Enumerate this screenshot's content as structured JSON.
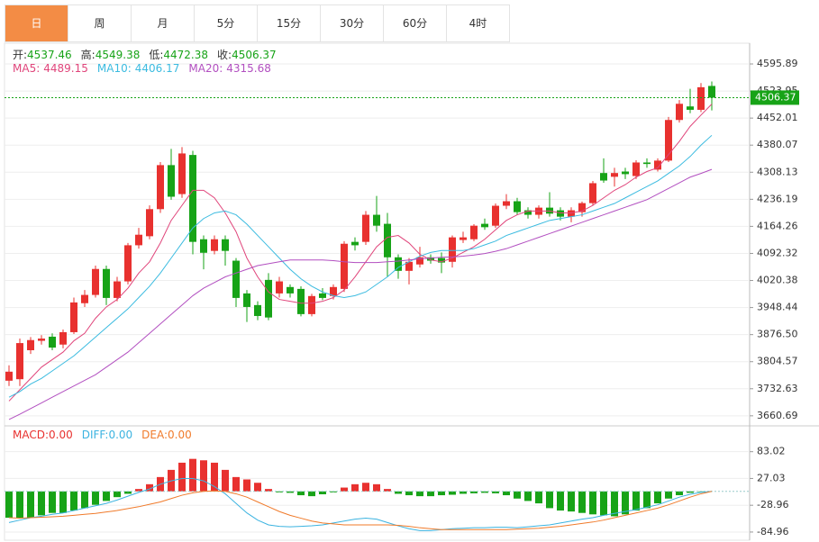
{
  "tabs": [
    "日",
    "周",
    "月",
    "5分",
    "15分",
    "30分",
    "60分",
    "4时"
  ],
  "active_tab": 0,
  "chart_data": [
    {
      "type": "candlestick",
      "ohlc_labels": [
        "开:",
        "高:",
        "低:",
        "收:"
      ],
      "up_color": "#e8312f",
      "down_color": "#17a317",
      "open": [
        3754,
        3758,
        3835,
        3860,
        3871,
        3850,
        3883,
        3960,
        3982,
        4051,
        3974,
        4018,
        4114,
        4138,
        4210,
        4327,
        4250,
        4354,
        4130,
        4099,
        4130,
        4073,
        3986,
        3955,
        4022,
        3986,
        4003,
        3998,
        3931,
        3986,
        3979,
        3998,
        4123,
        4123,
        4195,
        4171,
        4082,
        4046,
        4063,
        4082,
        4080,
        4070,
        4128,
        4130,
        4171,
        4166,
        4219,
        4231,
        4207,
        4195,
        4214,
        4207,
        4190,
        4202,
        4226,
        4306,
        4296,
        4310,
        4298,
        4334,
        4315,
        4339,
        4447,
        4483,
        4474,
        4537.46
      ],
      "high": [
        3795,
        3866,
        3870,
        3875,
        3880,
        3890,
        3975,
        3995,
        4060,
        4060,
        4030,
        4120,
        4160,
        4220,
        4335,
        4370,
        4375,
        4365,
        4140,
        4140,
        4140,
        4080,
        3995,
        3965,
        4040,
        4030,
        4010,
        4005,
        3985,
        4000,
        4010,
        4125,
        4135,
        4205,
        4245,
        4200,
        4090,
        4080,
        4110,
        4090,
        4095,
        4140,
        4150,
        4170,
        4185,
        4225,
        4250,
        4240,
        4215,
        4220,
        4255,
        4215,
        4215,
        4230,
        4285,
        4345,
        4320,
        4320,
        4340,
        4345,
        4345,
        4455,
        4500,
        4530,
        4545,
        4549.38
      ],
      "low": [
        3740,
        3740,
        3825,
        3850,
        3835,
        3840,
        3878,
        3950,
        3975,
        3955,
        3965,
        4010,
        4105,
        4130,
        4200,
        4235,
        4240,
        4090,
        4050,
        4090,
        4060,
        3950,
        3910,
        3915,
        3915,
        3975,
        3975,
        3925,
        3925,
        3968,
        3970,
        3990,
        4100,
        4115,
        4150,
        4030,
        4025,
        4010,
        4055,
        4065,
        4040,
        4055,
        4120,
        4125,
        4155,
        4160,
        4210,
        4195,
        4185,
        4185,
        4190,
        4180,
        4175,
        4190,
        4220,
        4280,
        4270,
        4290,
        4290,
        4320,
        4310,
        4335,
        4440,
        4465,
        4468,
        4472.38
      ],
      "close": [
        3778,
        3854,
        3862,
        3866,
        3842,
        3883,
        3962,
        3982,
        4051,
        3974,
        4018,
        4114,
        4142,
        4210,
        4327,
        4243,
        4358,
        4123,
        4094,
        4130,
        4099,
        3974,
        3950,
        3926,
        3922,
        4018,
        3986,
        3931,
        3979,
        3974,
        4003,
        4118,
        4114,
        4195,
        4166,
        4082,
        4046,
        4070,
        4082,
        4073,
        4068,
        4135,
        4135,
        4166,
        4162,
        4219,
        4231,
        4202,
        4195,
        4214,
        4198,
        4190,
        4207,
        4226,
        4279,
        4286,
        4306,
        4303,
        4334,
        4330,
        4339,
        4447,
        4490,
        4474,
        4534,
        4506.37
      ],
      "series": [
        {
          "name": "MA5:",
          "color": "#e0457b",
          "values": [
            3700,
            3730,
            3760,
            3790,
            3810,
            3830,
            3860,
            3880,
            3920,
            3950,
            3970,
            4000,
            4040,
            4070,
            4120,
            4180,
            4220,
            4260,
            4260,
            4240,
            4200,
            4150,
            4080,
            4030,
            3990,
            3970,
            3965,
            3960,
            3960,
            3965,
            3975,
            3995,
            4030,
            4070,
            4110,
            4135,
            4140,
            4120,
            4090,
            4075,
            4070,
            4080,
            4095,
            4110,
            4130,
            4155,
            4180,
            4195,
            4205,
            4205,
            4205,
            4200,
            4200,
            4205,
            4220,
            4240,
            4260,
            4275,
            4295,
            4310,
            4320,
            4355,
            4390,
            4430,
            4460,
            4489.15
          ]
        },
        {
          "name": "MA10:",
          "color": "#3bbbe0",
          "values": [
            3710,
            3725,
            3745,
            3760,
            3780,
            3800,
            3820,
            3845,
            3870,
            3895,
            3920,
            3945,
            3975,
            4005,
            4040,
            4080,
            4120,
            4160,
            4185,
            4200,
            4205,
            4195,
            4170,
            4140,
            4110,
            4080,
            4050,
            4025,
            4005,
            3990,
            3980,
            3975,
            3980,
            3990,
            4010,
            4030,
            4055,
            4070,
            4085,
            4095,
            4100,
            4100,
            4100,
            4105,
            4115,
            4125,
            4140,
            4150,
            4160,
            4170,
            4180,
            4185,
            4190,
            4195,
            4205,
            4215,
            4225,
            4240,
            4255,
            4270,
            4285,
            4305,
            4325,
            4350,
            4380,
            4406.17
          ]
        },
        {
          "name": "MA20:",
          "color": "#b24fc0",
          "values": [
            3651,
            3665,
            3680,
            3695,
            3710,
            3725,
            3740,
            3755,
            3770,
            3790,
            3810,
            3830,
            3855,
            3880,
            3905,
            3930,
            3955,
            3980,
            4000,
            4015,
            4030,
            4040,
            4050,
            4060,
            4065,
            4070,
            4075,
            4075,
            4075,
            4075,
            4073,
            4070,
            4068,
            4068,
            4068,
            4070,
            4072,
            4075,
            4078,
            4080,
            4082,
            4083,
            4085,
            4088,
            4092,
            4098,
            4105,
            4115,
            4125,
            4135,
            4145,
            4155,
            4165,
            4175,
            4185,
            4195,
            4205,
            4215,
            4225,
            4235,
            4250,
            4265,
            4280,
            4295,
            4305,
            4315.68
          ]
        }
      ],
      "ylim": [
        3634,
        4651
      ],
      "yticks": [
        4595.89,
        4523.95,
        4452.01,
        4380.07,
        4308.13,
        4236.19,
        4164.26,
        4092.32,
        4020.38,
        3948.44,
        {
          "value": 3876.5,
          "label": "3876.50"
        },
        3804.57,
        3732.63,
        3660.69
      ],
      "grid": true
    },
    {
      "type": "macd",
      "up_color": "#e8312f",
      "down_color": "#17a317",
      "series": [
        {
          "name": "MACD:",
          "legend_value": "0.00",
          "color": "#e8312f",
          "values": [
            -55,
            -55,
            -55,
            -50,
            -45,
            -45,
            -40,
            -35,
            -28,
            -20,
            -12,
            -5,
            5,
            15,
            30,
            45,
            60,
            68,
            65,
            60,
            45,
            30,
            25,
            18,
            5,
            -2,
            -3,
            -8,
            -10,
            -6,
            -2,
            8,
            15,
            18,
            15,
            5,
            -5,
            -8,
            -10,
            -10,
            -8,
            -7,
            -5,
            -4,
            -3,
            -4,
            -8,
            -15,
            -20,
            -25,
            -35,
            -40,
            -42,
            -45,
            -48,
            -50,
            -52,
            -48,
            -40,
            -35,
            -25,
            -15,
            -8,
            -3,
            -1,
            0
          ]
        },
        {
          "name": "DIFF:",
          "legend_value": "0.00",
          "color": "#3bb3e0",
          "values": [
            -65,
            -60,
            -55,
            -52,
            -48,
            -45,
            -40,
            -35,
            -30,
            -25,
            -18,
            -10,
            -2,
            5,
            15,
            22,
            27,
            27,
            22,
            10,
            -5,
            -25,
            -45,
            -60,
            -70,
            -73,
            -74,
            -73,
            -72,
            -70,
            -66,
            -62,
            -58,
            -56,
            -58,
            -65,
            -72,
            -78,
            -82,
            -82,
            -80,
            -78,
            -77,
            -76,
            -76,
            -75,
            -75,
            -76,
            -74,
            -72,
            -70,
            -66,
            -62,
            -58,
            -55,
            -50,
            -46,
            -42,
            -38,
            -33,
            -28,
            -20,
            -12,
            -6,
            -2,
            0
          ]
        },
        {
          "name": "DEA:",
          "legend_value": "0.00",
          "color": "#f07a2a",
          "values": [
            -55,
            -56,
            -55,
            -54,
            -53,
            -52,
            -50,
            -48,
            -46,
            -43,
            -40,
            -36,
            -32,
            -27,
            -22,
            -15,
            -8,
            -3,
            0,
            1,
            0,
            -5,
            -12,
            -22,
            -32,
            -42,
            -50,
            -56,
            -62,
            -66,
            -68,
            -70,
            -70,
            -70,
            -70,
            -70,
            -71,
            -73,
            -76,
            -78,
            -80,
            -80,
            -80,
            -80,
            -80,
            -80,
            -80,
            -79,
            -78,
            -77,
            -75,
            -73,
            -70,
            -67,
            -64,
            -60,
            -55,
            -50,
            -45,
            -40,
            -35,
            -28,
            -20,
            -12,
            -5,
            0
          ]
        }
      ],
      "ylim": [
        -102,
        137
      ],
      "yticks": [
        83.02,
        27.03,
        -28.96,
        -84.96
      ],
      "grid": true
    }
  ]
}
